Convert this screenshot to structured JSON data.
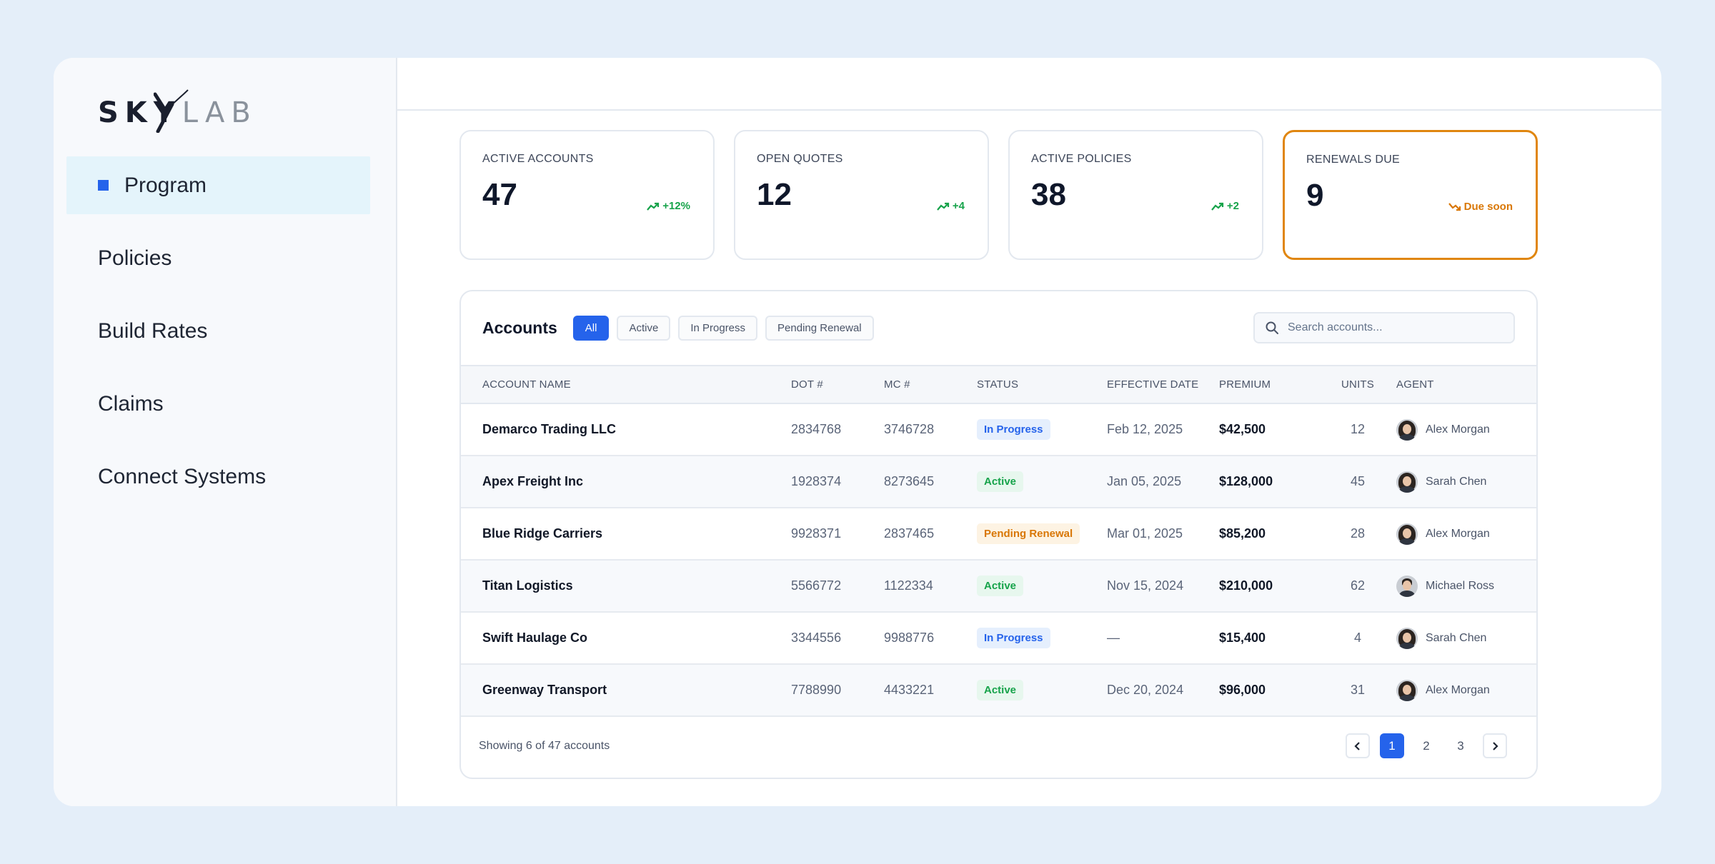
{
  "brand": {
    "sky": "SKY",
    "lab": "LAB"
  },
  "sidebar": {
    "items": [
      {
        "label": "Program",
        "active": true
      },
      {
        "label": "Policies"
      },
      {
        "label": "Build Rates"
      },
      {
        "label": "Claims"
      },
      {
        "label": "Connect Systems"
      }
    ]
  },
  "stats": [
    {
      "label": "ACTIVE ACCOUNTS",
      "value": "47",
      "trend": "+12%",
      "trend_icon": "trend-up-icon",
      "color": "#16a34a"
    },
    {
      "label": "OPEN QUOTES",
      "value": "12",
      "trend": "+4",
      "trend_icon": "trend-up-icon",
      "color": "#16a34a"
    },
    {
      "label": "ACTIVE POLICIES",
      "value": "38",
      "trend": "+2",
      "trend_icon": "trend-up-icon",
      "color": "#16a34a"
    },
    {
      "label": "RENEWALS DUE",
      "value": "9",
      "trend": "Due soon",
      "trend_icon": "trend-down-icon",
      "color": "#d97706"
    }
  ],
  "accounts": {
    "title": "Accounts",
    "filters": [
      {
        "label": "All",
        "active": true
      },
      {
        "label": "Active"
      },
      {
        "label": "In Progress"
      },
      {
        "label": "Pending Renewal"
      }
    ],
    "search_placeholder": "Search accounts...",
    "columns": [
      "ACCOUNT NAME",
      "DOT #",
      "MC #",
      "STATUS",
      "EFFECTIVE DATE",
      "PREMIUM",
      "UNITS",
      "AGENT"
    ],
    "rows": [
      {
        "name": "Demarco Trading LLC",
        "dot": "2834768",
        "mc": "3746728",
        "status": "In Progress",
        "status_kind": "in-progress",
        "date": "Feb 12, 2025",
        "premium": "$42,500",
        "units": "12",
        "agent": "Alex Morgan"
      },
      {
        "name": "Apex Freight Inc",
        "dot": "1928374",
        "mc": "8273645",
        "status": "Active",
        "status_kind": "active",
        "date": "Jan 05, 2025",
        "premium": "$128,000",
        "units": "45",
        "agent": "Sarah Chen"
      },
      {
        "name": "Blue Ridge Carriers",
        "dot": "9928371",
        "mc": "2837465",
        "status": "Pending Renewal",
        "status_kind": "pending",
        "date": "Mar 01, 2025",
        "premium": "$85,200",
        "units": "28",
        "agent": "Alex Morgan"
      },
      {
        "name": "Titan Logistics",
        "dot": "5566772",
        "mc": "1122334",
        "status": "Active",
        "status_kind": "active",
        "date": "Nov 15, 2024",
        "premium": "$210,000",
        "units": "62",
        "agent": "Michael Ross"
      },
      {
        "name": "Swift Haulage Co",
        "dot": "3344556",
        "mc": "9988776",
        "status": "In Progress",
        "status_kind": "in-progress",
        "date": "—",
        "premium": "$15,400",
        "units": "4",
        "agent": "Sarah Chen"
      },
      {
        "name": "Greenway Transport",
        "dot": "7788990",
        "mc": "4433221",
        "status": "Active",
        "status_kind": "active",
        "date": "Dec 20, 2024",
        "premium": "$96,000",
        "units": "31",
        "agent": "Alex Morgan"
      }
    ],
    "footer": "Showing 6 of 47 accounts",
    "pages": [
      "1",
      "2",
      "3"
    ],
    "current_page": "1"
  },
  "colors": {
    "accent": "#2563eb",
    "success": "#16a34a",
    "warning": "#d97706",
    "background": "#e4eef9"
  }
}
